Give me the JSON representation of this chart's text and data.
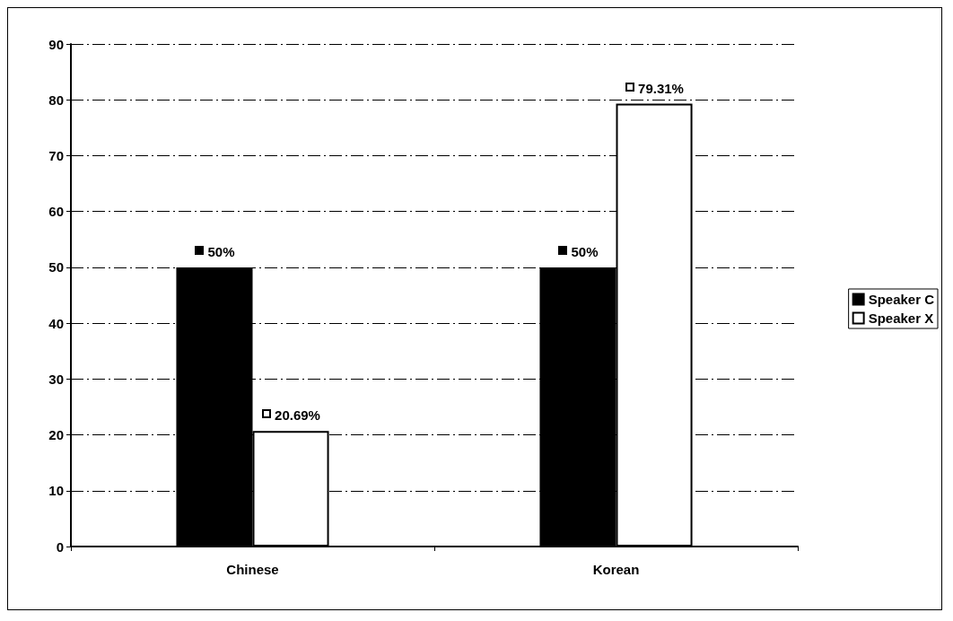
{
  "chart_data": {
    "type": "bar",
    "categories": [
      "Chinese",
      "Korean"
    ],
    "series": [
      {
        "name": "Speaker C",
        "color": "#000000",
        "values": [
          50,
          50
        ],
        "value_labels": [
          "50%",
          "50%"
        ]
      },
      {
        "name": "Speaker X",
        "color": "#ffffff",
        "values": [
          20.69,
          79.31
        ],
        "value_labels": [
          "20.69%",
          "79.31%"
        ]
      }
    ],
    "ylim": [
      0,
      90
    ],
    "yticks": [
      0,
      10,
      20,
      30,
      40,
      50,
      60,
      70,
      80,
      90
    ],
    "grid": "y",
    "legend": "right"
  }
}
